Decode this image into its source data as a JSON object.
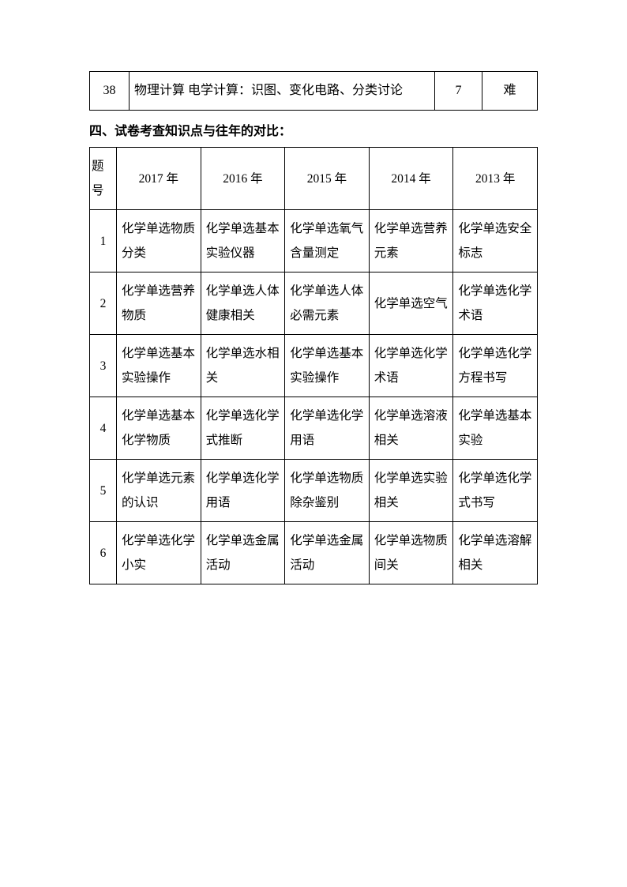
{
  "table1": {
    "rows": [
      {
        "num": "38",
        "desc": "物理计算 电学计算：识图、变化电路、分类讨论",
        "score": "7",
        "diff": "难"
      }
    ]
  },
  "section_title": "四、试卷考查知识点与往年的对比：",
  "table2": {
    "header": {
      "qnum": "题号",
      "y2017": "2017 年",
      "y2016": "2016 年",
      "y2015": "2015 年",
      "y2014": "2014 年",
      "y2013": "2013 年"
    },
    "rows": [
      {
        "num": "1",
        "y2017": "化学单选物质分类",
        "y2016": "化学单选基本实验仪器",
        "y2015": "化学单选氧气含量测定",
        "y2014": "化学单选营养元素",
        "y2013": "化学单选安全标志"
      },
      {
        "num": "2",
        "y2017": "化学单选营养物质",
        "y2016": "化学单选人体健康相关",
        "y2015": "化学单选人体必需元素",
        "y2014": "化学单选空气",
        "y2013": "化学单选化学术语"
      },
      {
        "num": "3",
        "y2017": "化学单选基本实验操作",
        "y2016": "化学单选水相关",
        "y2015": "化学单选基本实验操作",
        "y2014": "化学单选化学术语",
        "y2013": "化学单选化学方程书写"
      },
      {
        "num": "4",
        "y2017": "化学单选基本化学物质",
        "y2016": "化学单选化学式推断",
        "y2015": "化学单选化学用语",
        "y2014": "化学单选溶液相关",
        "y2013": "化学单选基本实验"
      },
      {
        "num": "5",
        "y2017": "化学单选元素的认识",
        "y2016": "化学单选化学用语",
        "y2015": "化学单选物质除杂鉴别",
        "y2014": "化学单选实验相关",
        "y2013": "化学单选化学式书写"
      },
      {
        "num": "6",
        "y2017": "化学单选化学小实",
        "y2016": "化学单选金属活动",
        "y2015": "化学单选金属活动",
        "y2014": "化学单选物质间关",
        "y2013": "化学单选溶解相关"
      }
    ]
  }
}
